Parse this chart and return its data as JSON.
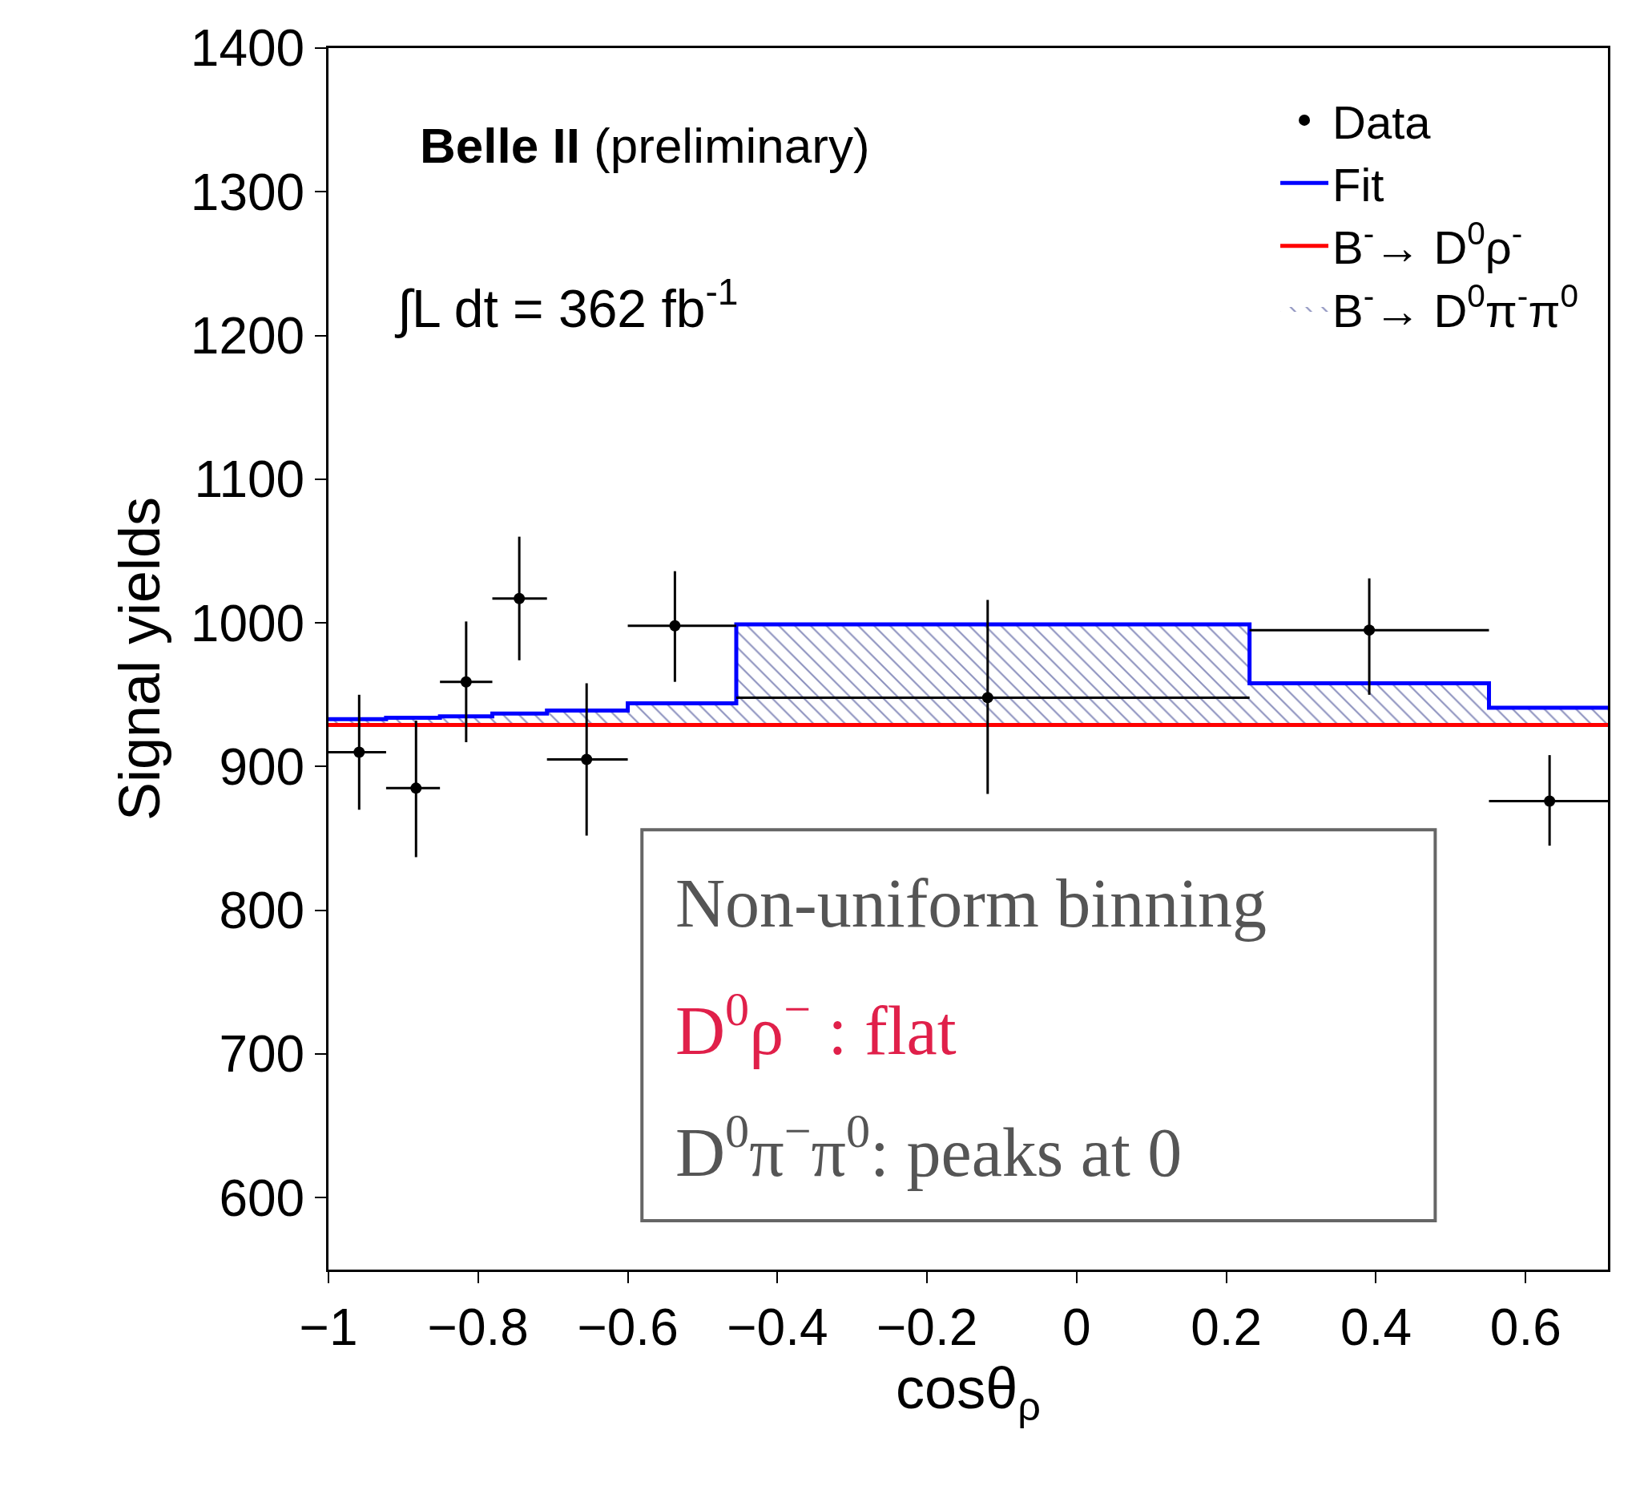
{
  "chart_data": {
    "type": "scatter",
    "xlabel": "cosθ$_{ρ}$",
    "ylabel": "Signal yields",
    "xlim": [
      -1,
      0.71
    ],
    "ylim": [
      550,
      1400
    ],
    "xticks": [
      {
        "value": -1,
        "label": "−1"
      },
      {
        "value": -0.8,
        "label": "−0.8"
      },
      {
        "value": -0.6,
        "label": "−0.6"
      },
      {
        "value": -0.4,
        "label": "−0.4"
      },
      {
        "value": -0.2,
        "label": "−0.2"
      },
      0,
      0.2,
      0.4,
      0.6
    ],
    "yticks": [
      600,
      700,
      800,
      900,
      1000,
      1100,
      1200,
      1300,
      1400
    ],
    "legend": "top right",
    "series": [
      {
        "name": "B$^{-}$→ D$^{0}$ρ$^{-}$",
        "type": "line",
        "color": "#ff0000",
        "x": [
          -1,
          0.71
        ],
        "values": [
          929,
          929
        ]
      },
      {
        "name": "B$^{-}$→ D$^{0}$π$^{-}$π$^{0}$",
        "type": "area",
        "color": "#1a237e",
        "x": [
          -1,
          -0.923,
          -0.851,
          -0.781,
          -0.708,
          -0.6,
          -0.455,
          0.231,
          0.551,
          0.71
        ],
        "values": [
          933,
          934,
          935,
          937,
          939,
          944,
          999,
          958,
          941,
          941
        ]
      },
      {
        "name": "Fit",
        "type": "step",
        "color": "#0000ff",
        "x": [
          -1,
          -0.923,
          -0.851,
          -0.781,
          -0.708,
          -0.6,
          -0.455,
          0.231,
          0.551,
          0.71
        ],
        "values": [
          933,
          934,
          935,
          937,
          939,
          944,
          999,
          958,
          941,
          941
        ]
      },
      {
        "name": "Data",
        "color": "#000000",
        "marker": "circle",
        "x": [
          -0.959,
          -0.883,
          -0.816,
          -0.745,
          -0.655,
          -0.537,
          -0.119,
          0.391,
          0.632
        ],
        "values": [
          910,
          885,
          959,
          1017,
          905,
          998,
          948,
          995,
          876
        ],
        "errors": [
          [
            870,
            950
          ],
          [
            837,
            932
          ],
          [
            917,
            1001
          ],
          [
            974,
            1060
          ],
          [
            852,
            958
          ],
          [
            959,
            1036
          ],
          [
            881,
            1016
          ],
          [
            950,
            1031
          ],
          [
            845,
            908
          ]
        ],
        "xerrors": [
          [
            -1,
            -0.923
          ],
          [
            -0.923,
            -0.851
          ],
          [
            -0.851,
            -0.781
          ],
          [
            -0.781,
            -0.708
          ],
          [
            -0.708,
            -0.6
          ],
          [
            -0.6,
            -0.455
          ],
          [
            -0.455,
            0.231
          ],
          [
            0.231,
            0.551
          ],
          [
            0.551,
            0.71
          ]
        ]
      }
    ],
    "annotations": [
      "Belle II (preliminary)",
      "∫L dt = 362 fb$^{-1}$",
      "Non-uniform binning",
      "D$^{0}$ρ$^{−}$ : flat",
      "D$^{0}$π$^{−}$π$^{0}$: peaks at 0"
    ]
  }
}
